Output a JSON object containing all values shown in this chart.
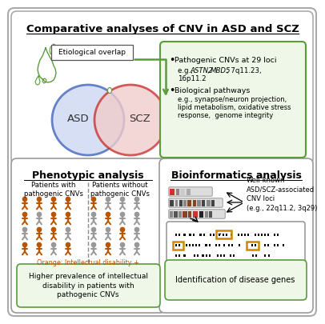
{
  "title": "Comparative analyses of CNV in ASD and SCZ",
  "green_box_border": "#5a9c3a",
  "green_box_bg": "#eef7e8",
  "venn_asd_color": "#4466bb",
  "venn_scz_color": "#cc3333",
  "venn_asd_fill": "#ccd8f0",
  "venn_scz_fill": "#f0cccc",
  "overlap_label": "Etiological overlap",
  "bullet1_title": "Pathogenic CNVs at 29 loci",
  "bullet2_title": "Biological pathways",
  "pheno_title": "Phenotypic analysis",
  "pheno_left_label": "Patients with\npathogenic CNVs",
  "pheno_right_label": "Patients without\npathogenic CNVs",
  "pheno_orange_note": "Orange: Intellectual disability +",
  "pheno_conclusion": "Higher prevalence of intellectual\ndisability in patients with\npathogenic CNVs",
  "bio_title": "Bioinformatics analysis",
  "bio_label": "Well-known\nASD/SCZ-associated\nCNV loci\n(e.g., 22q11.2, 3q29)",
  "bio_conclusion": "Identification of disease genes",
  "orange_person": "#b85500",
  "grey_person": "#999999",
  "background": "#ffffff",
  "box_border": "#999999"
}
